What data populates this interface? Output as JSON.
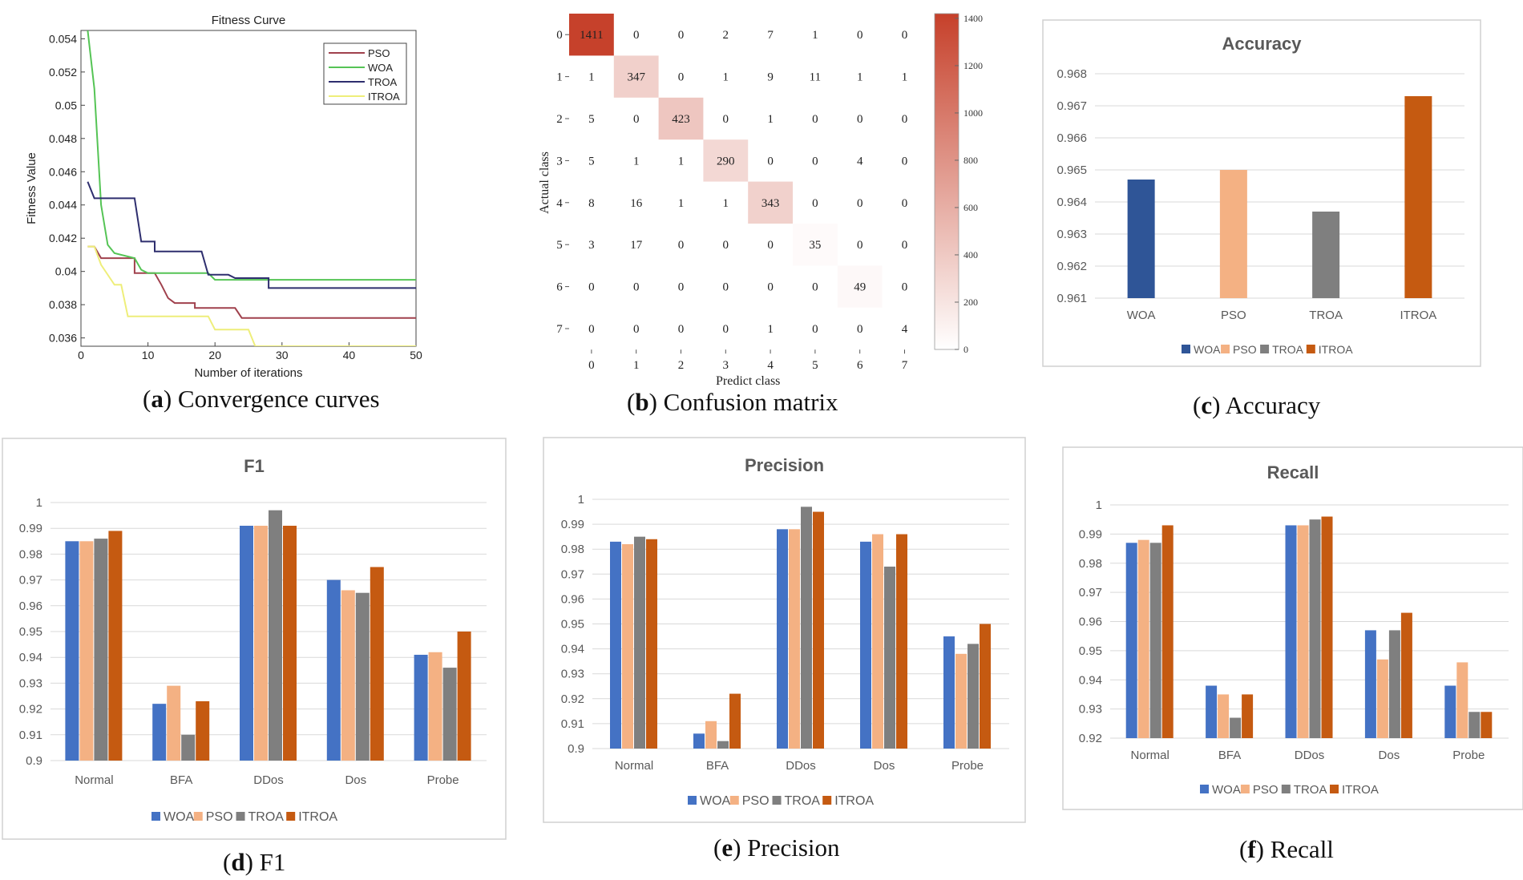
{
  "colors": {
    "woa": "#4472c4",
    "pso": "#f4b183",
    "troa": "#7f7f7f",
    "itroa": "#c55a11",
    "fit_pso": "#a0414d",
    "fit_woa": "#55c455",
    "fit_troa": "#2e2e6e",
    "fit_itroa": "#eeee7a",
    "accuracy_woa": "#2f5597"
  },
  "captions": {
    "a": {
      "letter": "a",
      "text": "Convergence curves"
    },
    "b": {
      "letter": "b",
      "text": "Confusion matrix"
    },
    "c": {
      "letter": "c",
      "text": "Accuracy"
    },
    "d": {
      "letter": "d",
      "text": "F1"
    },
    "e": {
      "letter": "e",
      "text": "Precision"
    },
    "f": {
      "letter": "f",
      "text": "Recall"
    }
  },
  "chart_data": [
    {
      "id": "fitness",
      "type": "line",
      "title": "Fitness Curve",
      "xlabel": "Number of iterations",
      "ylabel": "Fitness Value",
      "xlim": [
        0,
        50
      ],
      "ylim": [
        0.0355,
        0.0545
      ],
      "xticks": [
        0,
        10,
        20,
        30,
        40,
        50
      ],
      "yticks": [
        0.036,
        0.038,
        0.04,
        0.042,
        0.044,
        0.046,
        0.048,
        0.05,
        0.052,
        0.054
      ],
      "ytick_labels": [
        "0.036",
        "0.038",
        "0.04",
        "0.042",
        "0.044",
        "0.046",
        "0.048",
        "0.05",
        "0.052",
        "0.054"
      ],
      "legend_position": "top-right",
      "series": [
        {
          "name": "PSO",
          "color_key": "fit_pso",
          "points": [
            [
              1,
              0.0415
            ],
            [
              2,
              0.0415
            ],
            [
              3,
              0.0408
            ],
            [
              8,
              0.0408
            ],
            [
              8,
              0.0399
            ],
            [
              11,
              0.0399
            ],
            [
              12,
              0.0392
            ],
            [
              13,
              0.0384
            ],
            [
              14,
              0.0381
            ],
            [
              17,
              0.0381
            ],
            [
              17,
              0.0378
            ],
            [
              23,
              0.0378
            ],
            [
              24,
              0.0372
            ],
            [
              50,
              0.0372
            ]
          ]
        },
        {
          "name": "WOA",
          "color_key": "fit_woa",
          "points": [
            [
              1,
              0.0545
            ],
            [
              2,
              0.051
            ],
            [
              3,
              0.044
            ],
            [
              4,
              0.0416
            ],
            [
              5,
              0.0411
            ],
            [
              8,
              0.0408
            ],
            [
              9,
              0.0401
            ],
            [
              10,
              0.0399
            ],
            [
              19,
              0.0399
            ],
            [
              20,
              0.0395
            ],
            [
              50,
              0.0395
            ]
          ]
        },
        {
          "name": "TROA",
          "color_key": "fit_troa",
          "points": [
            [
              1,
              0.0454
            ],
            [
              2,
              0.0444
            ],
            [
              8,
              0.0444
            ],
            [
              9,
              0.0418
            ],
            [
              11,
              0.0418
            ],
            [
              11,
              0.0412
            ],
            [
              18,
              0.0412
            ],
            [
              19,
              0.0398
            ],
            [
              22,
              0.0398
            ],
            [
              23,
              0.0396
            ],
            [
              28,
              0.0396
            ],
            [
              28,
              0.039
            ],
            [
              50,
              0.039
            ]
          ]
        },
        {
          "name": "ITROA",
          "color_key": "fit_itroa",
          "points": [
            [
              1,
              0.0415
            ],
            [
              2,
              0.0415
            ],
            [
              3,
              0.0404
            ],
            [
              5,
              0.0392
            ],
            [
              6,
              0.0392
            ],
            [
              7,
              0.0373
            ],
            [
              19,
              0.0373
            ],
            [
              20,
              0.0365
            ],
            [
              25,
              0.0365
            ],
            [
              26,
              0.0355
            ],
            [
              50,
              0.0355
            ]
          ]
        }
      ]
    },
    {
      "id": "confusion",
      "type": "heatmap",
      "title": "",
      "xlabel": "Predict class",
      "ylabel": "Actual class",
      "labels": [
        "0",
        "1",
        "2",
        "3",
        "4",
        "5",
        "6",
        "7"
      ],
      "matrix": [
        [
          1411,
          0,
          0,
          2,
          7,
          1,
          0,
          0
        ],
        [
          1,
          347,
          0,
          1,
          9,
          11,
          1,
          1
        ],
        [
          5,
          0,
          423,
          0,
          1,
          0,
          0,
          0
        ],
        [
          5,
          1,
          1,
          290,
          0,
          0,
          4,
          0
        ],
        [
          8,
          16,
          1,
          1,
          343,
          0,
          0,
          0
        ],
        [
          3,
          17,
          0,
          0,
          0,
          35,
          0,
          0
        ],
        [
          0,
          0,
          0,
          0,
          0,
          0,
          49,
          0
        ],
        [
          0,
          0,
          0,
          0,
          1,
          0,
          0,
          4
        ]
      ],
      "colorbar_range": [
        0,
        1420
      ],
      "colorbar_ticks": [
        0,
        200,
        400,
        600,
        800,
        1000,
        1200,
        1400
      ],
      "color_low": "#ffffff",
      "color_high": "#c6402a"
    },
    {
      "id": "accuracy",
      "type": "bar",
      "title": "Accuracy",
      "categories": [
        "WOA",
        "PSO",
        "TROA",
        "ITROA"
      ],
      "values": [
        0.9647,
        0.965,
        0.9637,
        0.9673
      ],
      "color_keys": [
        "accuracy_woa",
        "pso",
        "troa",
        "itroa"
      ],
      "ylim": [
        0.961,
        0.968
      ],
      "yticks": [
        0.961,
        0.962,
        0.963,
        0.964,
        0.965,
        0.966,
        0.967,
        0.968
      ],
      "ytick_labels": [
        "0.961",
        "0.962",
        "0.963",
        "0.964",
        "0.965",
        "0.966",
        "0.967",
        "0.968"
      ],
      "legend": [
        "WOA",
        "PSO",
        "TROA",
        "ITROA"
      ],
      "legend_position": "bottom"
    },
    {
      "id": "f1",
      "type": "bar",
      "title": "F1",
      "categories": [
        "Normal",
        "BFA",
        "DDos",
        "Dos",
        "Probe"
      ],
      "series": [
        {
          "name": "WOA",
          "color_key": "woa",
          "values": [
            0.985,
            0.922,
            0.991,
            0.97,
            0.941
          ]
        },
        {
          "name": "PSO",
          "color_key": "pso",
          "values": [
            0.985,
            0.929,
            0.991,
            0.966,
            0.942
          ]
        },
        {
          "name": "TROA",
          "color_key": "troa",
          "values": [
            0.986,
            0.91,
            0.997,
            0.965,
            0.936
          ]
        },
        {
          "name": "ITROA",
          "color_key": "itroa",
          "values": [
            0.989,
            0.923,
            0.991,
            0.975,
            0.95
          ]
        }
      ],
      "ylim": [
        0.9,
        1.0
      ],
      "yticks": [
        0.9,
        0.91,
        0.92,
        0.93,
        0.94,
        0.95,
        0.96,
        0.97,
        0.98,
        0.99,
        1.0
      ],
      "ytick_labels": [
        "0.9",
        "0.91",
        "0.92",
        "0.93",
        "0.94",
        "0.95",
        "0.96",
        "0.97",
        "0.98",
        "0.99",
        "1"
      ],
      "legend_position": "bottom"
    },
    {
      "id": "precision",
      "type": "bar",
      "title": "Precision",
      "categories": [
        "Normal",
        "BFA",
        "DDos",
        "Dos",
        "Probe"
      ],
      "series": [
        {
          "name": "WOA",
          "color_key": "woa",
          "values": [
            0.983,
            0.906,
            0.988,
            0.983,
            0.945
          ]
        },
        {
          "name": "PSO",
          "color_key": "pso",
          "values": [
            0.982,
            0.911,
            0.988,
            0.986,
            0.938
          ]
        },
        {
          "name": "TROA",
          "color_key": "troa",
          "values": [
            0.985,
            0.903,
            0.997,
            0.973,
            0.942
          ]
        },
        {
          "name": "ITROA",
          "color_key": "itroa",
          "values": [
            0.984,
            0.922,
            0.995,
            0.986,
            0.95
          ]
        }
      ],
      "ylim": [
        0.9,
        1.0
      ],
      "yticks": [
        0.9,
        0.91,
        0.92,
        0.93,
        0.94,
        0.95,
        0.96,
        0.97,
        0.98,
        0.99,
        1.0
      ],
      "ytick_labels": [
        "0.9",
        "0.91",
        "0.92",
        "0.93",
        "0.94",
        "0.95",
        "0.96",
        "0.97",
        "0.98",
        "0.99",
        "1"
      ],
      "legend_position": "bottom"
    },
    {
      "id": "recall",
      "type": "bar",
      "title": "Recall",
      "categories": [
        "Normal",
        "BFA",
        "DDos",
        "Dos",
        "Probe"
      ],
      "series": [
        {
          "name": "WOA",
          "color_key": "woa",
          "values": [
            0.987,
            0.938,
            0.993,
            0.957,
            0.938
          ]
        },
        {
          "name": "PSO",
          "color_key": "pso",
          "values": [
            0.988,
            0.935,
            0.993,
            0.947,
            0.946
          ]
        },
        {
          "name": "TROA",
          "color_key": "troa",
          "values": [
            0.987,
            0.927,
            0.995,
            0.957,
            0.929
          ]
        },
        {
          "name": "ITROA",
          "color_key": "itroa",
          "values": [
            0.993,
            0.935,
            0.996,
            0.963,
            0.929
          ]
        }
      ],
      "ylim": [
        0.92,
        1.0
      ],
      "yticks": [
        0.92,
        0.93,
        0.94,
        0.95,
        0.96,
        0.97,
        0.98,
        0.99,
        1.0
      ],
      "ytick_labels": [
        "0.92",
        "0.93",
        "0.94",
        "0.95",
        "0.96",
        "0.97",
        "0.98",
        "0.99",
        "1"
      ],
      "legend_position": "bottom"
    }
  ]
}
